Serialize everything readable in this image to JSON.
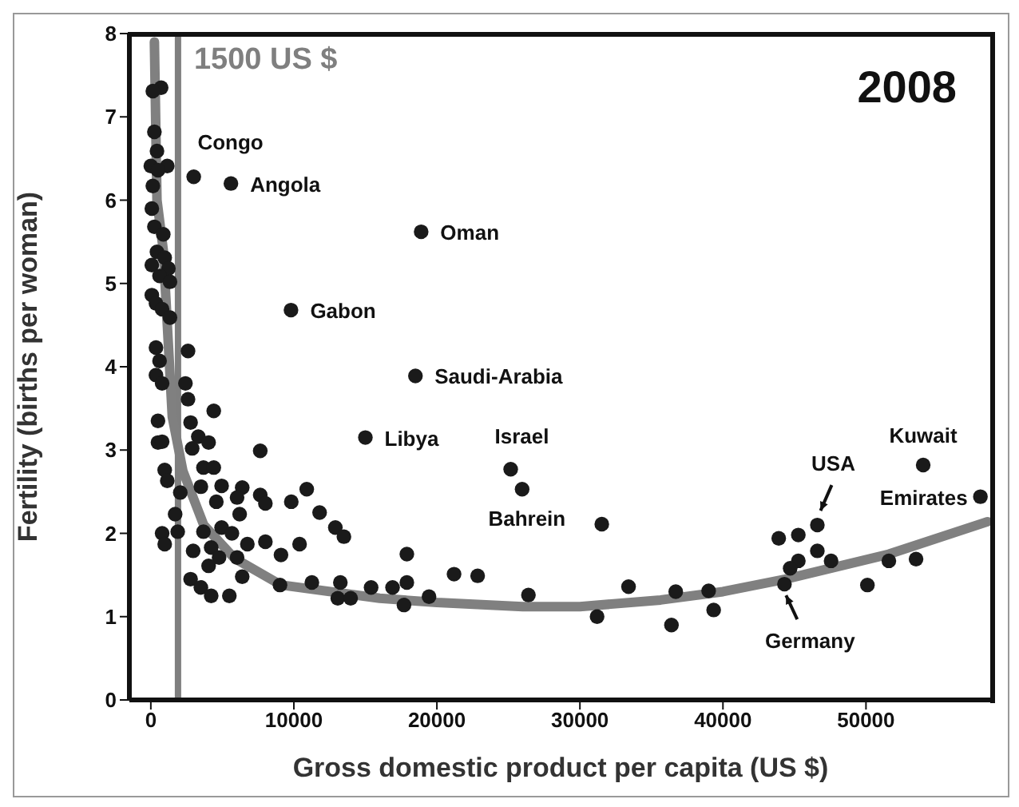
{
  "chart_data": {
    "type": "scatter",
    "xlabel": "Gross domestic product per capita (US $)",
    "ylabel": "Fertility (births per woman)",
    "xlim": [
      -1500,
      58800
    ],
    "xticks": [
      0,
      10000,
      20000,
      30000,
      40000,
      50000
    ],
    "ylim": [
      0,
      8
    ],
    "yticks": [
      0,
      1,
      2,
      3,
      4,
      5,
      6,
      7,
      8
    ],
    "marker": "circle",
    "series": [
      {
        "type": "scatter",
        "color": "#1a1a1a",
        "x": [
          3000,
          5600,
          18900,
          9800,
          18500,
          15000,
          25160,
          25960,
          31530,
          17900,
          16900,
          17900,
          17700,
          19450,
          21200,
          22850,
          26400,
          31200,
          33400,
          36400,
          36700,
          54000,
          58000,
          46600,
          43900,
          45270,
          46600,
          45270,
          44700,
          47560,
          44300,
          50100,
          51600,
          53500,
          39000,
          39350,
          720,
          140,
          250,
          430,
          0,
          1150,
          500,
          140,
          70,
          250,
          870,
          430,
          970,
          70,
          1230,
          610,
          1340,
          70,
          360,
          790,
          1340,
          360,
          2600,
          610,
          360,
          790,
          2420,
          2600,
          500,
          2780,
          4400,
          3320,
          4040,
          500,
          790,
          7650,
          2890,
          970,
          3680,
          4400,
          1150,
          4950,
          3500,
          6390,
          6030,
          7650,
          10900,
          2060,
          4580,
          8010,
          9820,
          1700,
          6210,
          11800,
          12900,
          13500,
          3680,
          4950,
          5670,
          790,
          1880,
          970,
          10400,
          6750,
          8010,
          9100,
          2960,
          4220,
          4770,
          6030,
          4040,
          6390,
          2780,
          3500,
          4220,
          5490,
          9030,
          11260,
          13250,
          13070,
          13970,
          15400
        ],
        "values": [
          6.28,
          6.2,
          5.62,
          4.68,
          3.89,
          3.15,
          2.77,
          2.53,
          2.11,
          1.75,
          1.35,
          1.41,
          1.14,
          1.24,
          1.51,
          1.49,
          1.26,
          1.0,
          1.36,
          0.9,
          1.3,
          2.82,
          2.44,
          2.1,
          1.94,
          1.98,
          1.79,
          1.67,
          1.58,
          1.67,
          1.39,
          1.38,
          1.67,
          1.69,
          1.31,
          1.08,
          7.35,
          7.31,
          6.82,
          6.59,
          6.41,
          6.41,
          6.36,
          6.17,
          5.9,
          5.68,
          5.59,
          5.38,
          5.31,
          5.22,
          5.18,
          5.09,
          5.02,
          4.86,
          4.76,
          4.69,
          4.59,
          4.23,
          4.19,
          4.07,
          3.9,
          3.8,
          3.8,
          3.61,
          3.35,
          3.33,
          3.47,
          3.16,
          3.09,
          3.09,
          3.1,
          2.99,
          3.02,
          2.76,
          2.79,
          2.79,
          2.63,
          2.57,
          2.56,
          2.55,
          2.43,
          2.46,
          2.53,
          2.49,
          2.38,
          2.36,
          2.38,
          2.23,
          2.23,
          2.25,
          2.07,
          1.96,
          2.02,
          2.07,
          2.0,
          2.0,
          2.02,
          1.87,
          1.87,
          1.87,
          1.9,
          1.74,
          1.79,
          1.83,
          1.71,
          1.71,
          1.61,
          1.48,
          1.45,
          1.35,
          1.25,
          1.25,
          1.38,
          1.41,
          1.41,
          1.22,
          1.22,
          1.35
        ]
      },
      {
        "type": "line",
        "color": "#808080",
        "marker": "none",
        "x": [
          250,
          430,
          870,
          1500,
          2240,
          3700,
          5850,
          9100,
          16000,
          20000,
          26000,
          30000,
          35640,
          40000,
          44360,
          51600,
          58500
        ],
        "values": [
          7.9,
          6.0,
          5.4,
          3.4,
          2.75,
          2.1,
          1.7,
          1.38,
          1.22,
          1.17,
          1.12,
          1.12,
          1.2,
          1.3,
          1.45,
          1.75,
          2.14
        ]
      }
    ],
    "ref_lines": [
      {
        "axis": "x",
        "value": 1900,
        "label": "1500 US $",
        "color": "#7f7f7f"
      }
    ],
    "annotations": [
      "2008",
      {
        "text": "Congo",
        "x": 3000,
        "y": 6.28
      },
      {
        "text": "Angola",
        "x": 5600,
        "y": 6.2
      },
      {
        "text": "Oman",
        "x": 18900,
        "y": 5.62
      },
      {
        "text": "Gabon",
        "x": 9800,
        "y": 4.68
      },
      {
        "text": "Saudi-Arabia",
        "x": 18500,
        "y": 3.89
      },
      {
        "text": "Libya",
        "x": 15000,
        "y": 3.15
      },
      {
        "text": "Israel",
        "x": 25160,
        "y": 2.77
      },
      {
        "text": "Bahrein",
        "x": 25960,
        "y": 2.53
      },
      {
        "text": "USA",
        "x": 46600,
        "y": 2.1
      },
      {
        "text": "Kuwait",
        "x": 54000,
        "y": 2.82
      },
      {
        "text": "Emirates",
        "x": 58000,
        "y": 2.44
      },
      {
        "text": "Germany",
        "x": 44300,
        "y": 1.39
      }
    ]
  }
}
